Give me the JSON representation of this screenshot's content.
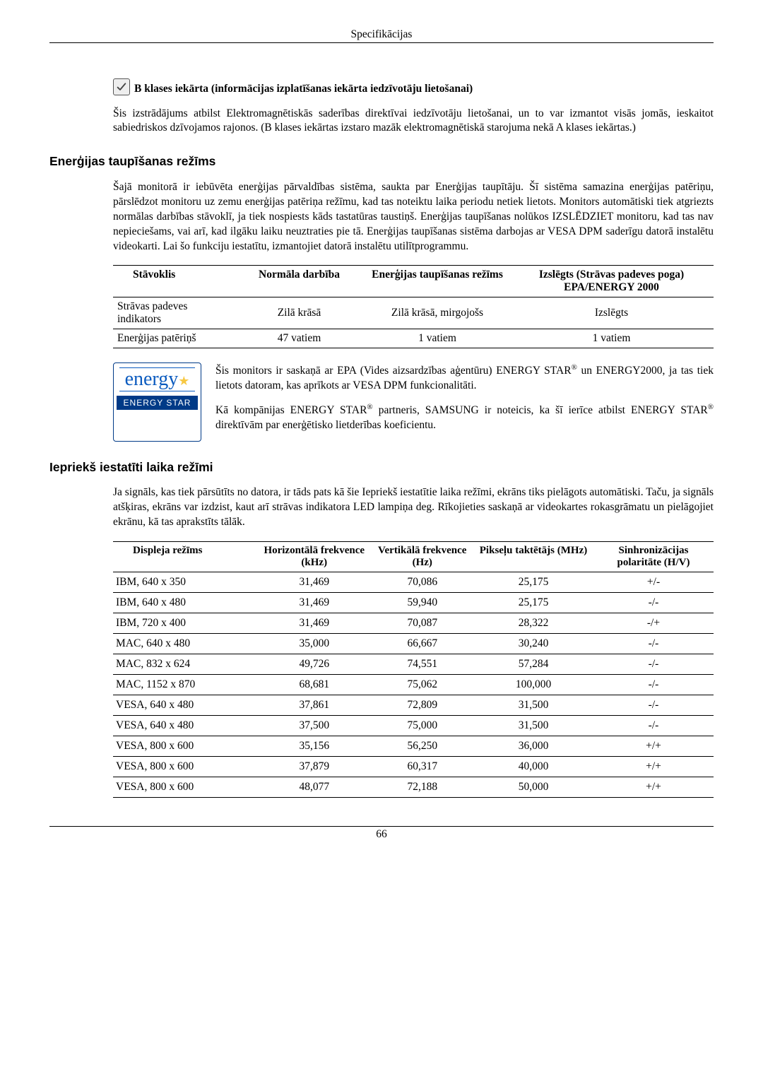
{
  "header_title": "Specifikācijas",
  "page_number": "66",
  "class_b": {
    "heading": "B klases iekārta (informācijas izplatīšanas iekārta iedzīvotāju lietošanai)",
    "body": "Šis izstrādājums atbilst Elektromagnētiskās saderības direktīvai iedzīvotāju lietošanai, un to var izmantot visās jomās, ieskaitot sabiedriskos dzīvojamos rajonos. (B klases iekārtas izstaro mazāk elektromagnētiskā starojuma nekā A klases iekārtas.)"
  },
  "power_saver": {
    "heading": "Enerģijas taupīšanas režīms",
    "body": "Šajā monitorā ir iebūvēta enerģijas pārvaldības sistēma, saukta par Enerģijas taupītāju. Šī sistēma samazina enerģijas patēriņu, pārslēdzot monitoru uz zemu enerģijas patēriņa režīmu, kad tas noteiktu laika periodu netiek lietots. Monitors automātiski tiek atgriezts normālas darbības stāvoklī, ja tiek nospiests kāds tastatūras taustiņš. Enerģijas taupīšanas nolūkos IZSLĒDZIET monitoru, kad tas nav nepieciešams, vai arī, kad ilgāku laiku neuztraties pie tā. Enerģijas taupīšanas sistēma darbojas ar VESA DPM saderīgu datorā instalētu videokarti. Lai šo funkciju iestatītu, izmantojiet datorā instalētu utilītprogrammu.",
    "table": {
      "headers": [
        "Stāvoklis",
        "Normāla darbība",
        "Enerģijas taupīšanas režīms",
        "Izslēgts (Strāvas padeves poga) EPA/ENERGY 2000"
      ],
      "rows": [
        [
          "Strāvas padeves indikators",
          "Zilā krāsā",
          "Zilā krāsā, mirgojošs",
          "Izslēgts"
        ],
        [
          "Enerģijas patēriņš",
          "47 vatiem",
          "1 vatiem",
          "1 vatiem"
        ]
      ]
    },
    "energy_star": {
      "logo_script": "energy",
      "logo_label": "ENERGY STAR",
      "para1_a": "Šis monitors ir saskaņā ar EPA (Vides aizsardzības aģentūru) ENERGY STAR",
      "para1_b": " un ENERGY2000, ja tas tiek lietots datoram, kas aprīkots ar VESA DPM funkcionalitāti.",
      "para2_a": "Kā kompānijas ENERGY STAR",
      "para2_b": " partneris, SAMSUNG ir noteicis, ka šī ierīce atbilst ENERGY STAR",
      "para2_c": " direktīvām par enerģētisko lietderības koeficientu."
    }
  },
  "timing": {
    "heading": "Iepriekš iestatīti laika režīmi",
    "body": "Ja signāls, kas tiek pārsūtīts no datora, ir tāds pats kā šie Iepriekš iestatītie laika režīmi, ekrāns tiks pielāgots automātiski. Taču, ja signāls atšķiras, ekrāns var izdzist, kaut arī strāvas indikatora LED lampiņa deg. Rīkojieties saskaņā ar videokartes rokasgrāmatu un pielāgojiet ekrānu, kā tas aprakstīts tālāk.",
    "headers": [
      "Displeja režīms",
      "Horizontālā frekvence (kHz)",
      "Vertikālā frekvence (Hz)",
      "Pikseļu taktētājs (MHz)",
      "Sinhronizācijas polaritāte (H/V)"
    ],
    "rows": [
      [
        "IBM, 640 x 350",
        "31,469",
        "70,086",
        "25,175",
        "+/-"
      ],
      [
        "IBM, 640 x 480",
        "31,469",
        "59,940",
        "25,175",
        "-/-"
      ],
      [
        "IBM, 720 x 400",
        "31,469",
        "70,087",
        "28,322",
        "-/+"
      ],
      [
        "MAC, 640 x 480",
        "35,000",
        "66,667",
        "30,240",
        "-/-"
      ],
      [
        "MAC, 832 x 624",
        "49,726",
        "74,551",
        "57,284",
        "-/-"
      ],
      [
        "MAC, 1152 x 870",
        "68,681",
        "75,062",
        "100,000",
        "-/-"
      ],
      [
        "VESA, 640 x 480",
        "37,861",
        "72,809",
        "31,500",
        "-/-"
      ],
      [
        "VESA, 640 x 480",
        "37,500",
        "75,000",
        "31,500",
        "-/-"
      ],
      [
        "VESA, 800 x 600",
        "35,156",
        "56,250",
        "36,000",
        "+/+"
      ],
      [
        "VESA, 800 x 600",
        "37,879",
        "60,317",
        "40,000",
        "+/+"
      ],
      [
        "VESA, 800 x 600",
        "48,077",
        "72,188",
        "50,000",
        "+/+"
      ]
    ]
  }
}
